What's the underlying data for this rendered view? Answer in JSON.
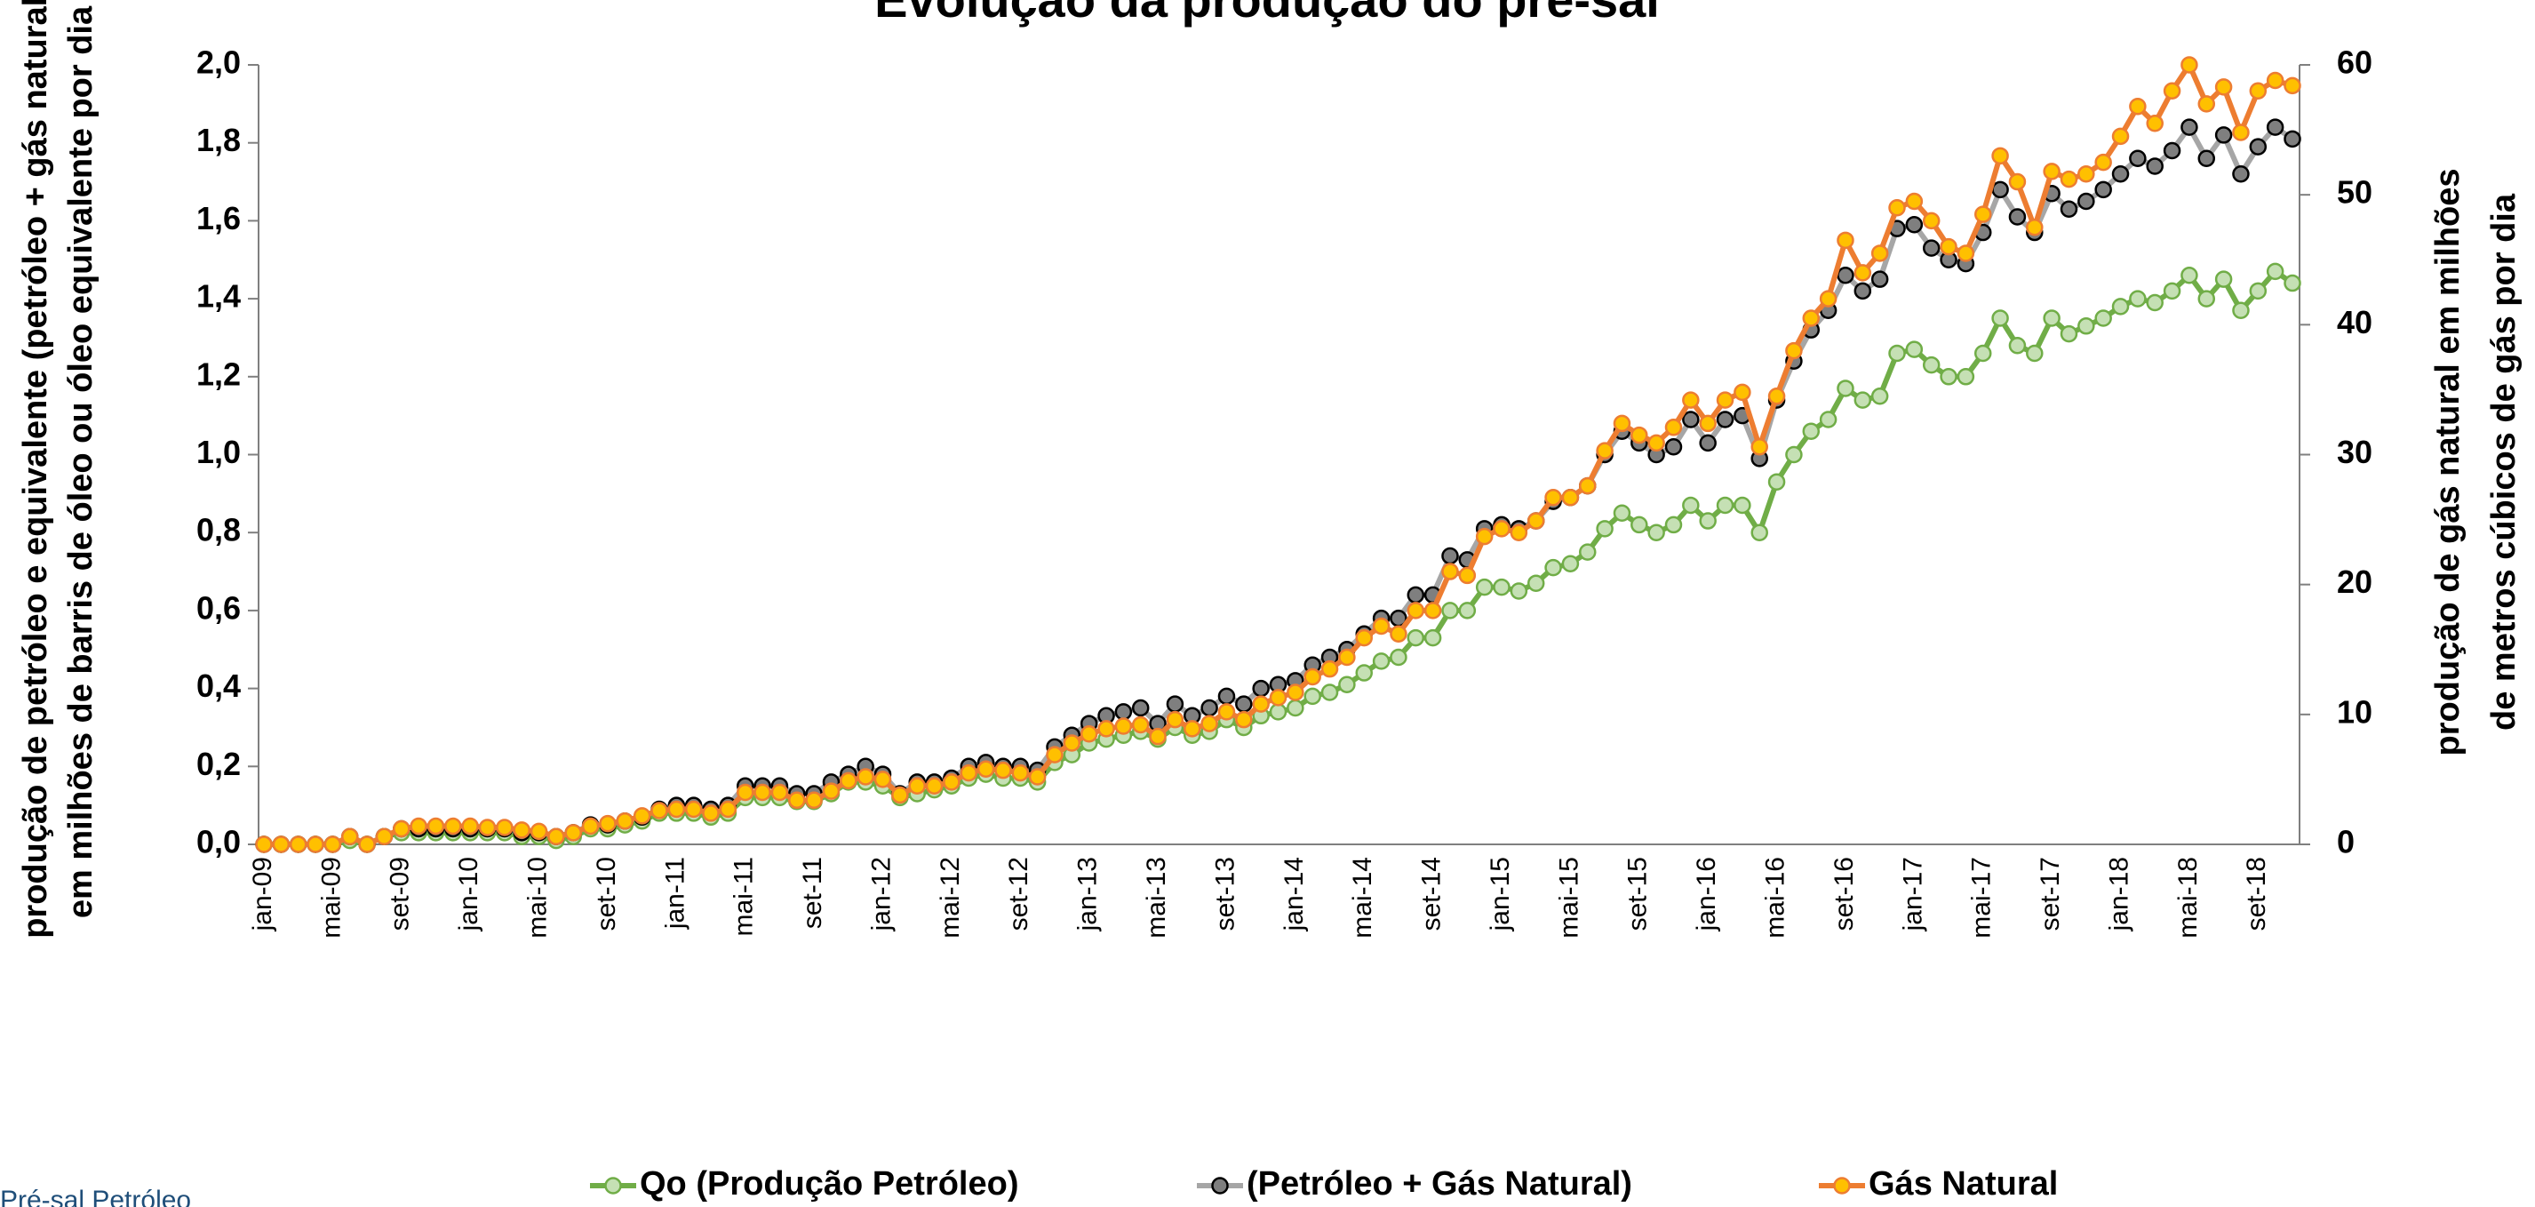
{
  "chart_data": {
    "type": "line",
    "title": "Evolução da produção do pré-sal",
    "logo": "Pré-sal Petróleo",
    "ylabel": [
      "produção de petróleo e equivalente (petróleo + gás natural)",
      "em milhões de barris de óleo ou óleo equivalente por dia"
    ],
    "y2label": [
      "produção de gás natural em milhões",
      "de metros cúbicos de gás por dia"
    ],
    "categories": [
      "jan-09",
      null,
      null,
      null,
      "mai-09",
      null,
      null,
      null,
      "set-09",
      null,
      null,
      null,
      "jan-10",
      null,
      null,
      null,
      "mai-10",
      null,
      null,
      null,
      "set-10",
      null,
      null,
      null,
      "jan-11",
      null,
      null,
      null,
      "mai-11",
      null,
      null,
      null,
      "set-11",
      null,
      null,
      null,
      "jan-12",
      null,
      null,
      null,
      "mai-12",
      null,
      null,
      null,
      "set-12",
      null,
      null,
      null,
      "jan-13",
      null,
      null,
      null,
      "mai-13",
      null,
      null,
      null,
      "set-13",
      null,
      null,
      null,
      "jan-14",
      null,
      null,
      null,
      "mai-14",
      null,
      null,
      null,
      "set-14",
      null,
      null,
      null,
      "jan-15",
      null,
      null,
      null,
      "mai-15",
      null,
      null,
      null,
      "set-15",
      null,
      null,
      null,
      "jan-16",
      null,
      null,
      null,
      "mai-16",
      null,
      null,
      null,
      "set-16",
      null,
      null,
      null,
      "jan-17",
      null,
      null,
      null,
      "mai-17",
      null,
      null,
      null,
      "set-17",
      null,
      null,
      null,
      "jan-18",
      null,
      null,
      null,
      "mai-18",
      null,
      null,
      null,
      "set-18",
      null,
      null
    ],
    "series": [
      {
        "name": "Qo (Produção Petróleo)",
        "color": "#70ad47",
        "marker_color": "#c5e0b4",
        "values": [
          0,
          0,
          0,
          0,
          0,
          0.01,
          0,
          0.02,
          0.03,
          0.03,
          0.03,
          0.03,
          0.03,
          0.03,
          0.03,
          0.02,
          0.02,
          0.01,
          0.02,
          0.04,
          0.04,
          0.05,
          0.06,
          0.08,
          0.08,
          0.08,
          0.07,
          0.08,
          0.12,
          0.12,
          0.12,
          0.11,
          0.11,
          0.13,
          0.16,
          0.16,
          0.15,
          0.12,
          0.13,
          0.14,
          0.15,
          0.17,
          0.18,
          0.17,
          0.17,
          0.16,
          0.21,
          0.23,
          0.26,
          0.27,
          0.28,
          0.29,
          0.27,
          0.3,
          0.28,
          0.29,
          0.32,
          0.3,
          0.33,
          0.34,
          0.35,
          0.38,
          0.39,
          0.41,
          0.44,
          0.47,
          0.48,
          0.53,
          0.53,
          0.6,
          0.6,
          0.66,
          0.66,
          0.65,
          0.67,
          0.71,
          0.72,
          0.75,
          0.81,
          0.85,
          0.82,
          0.8,
          0.82,
          0.87,
          0.83,
          0.87,
          0.87,
          0.8,
          0.93,
          1.0,
          1.06,
          1.09,
          1.17,
          1.14,
          1.15,
          1.26,
          1.27,
          1.23,
          1.2,
          1.2,
          1.26,
          1.35,
          1.28,
          1.26,
          1.35,
          1.31,
          1.33,
          1.35,
          1.38,
          1.4,
          1.39,
          1.42,
          1.46,
          1.4,
          1.45,
          1.37,
          1.42,
          1.47,
          1.44
        ]
      },
      {
        "name": "(Petróleo + Gás Natural)",
        "color": "#a6a6a6",
        "marker_color": "#7f7f7f",
        "values": [
          0,
          0,
          0,
          0,
          0,
          0.02,
          0,
          0.02,
          0.04,
          0.04,
          0.04,
          0.04,
          0.04,
          0.04,
          0.04,
          0.03,
          0.03,
          0.02,
          0.03,
          0.05,
          0.05,
          0.06,
          0.07,
          0.09,
          0.1,
          0.1,
          0.09,
          0.1,
          0.15,
          0.15,
          0.15,
          0.13,
          0.13,
          0.16,
          0.18,
          0.2,
          0.18,
          0.13,
          0.16,
          0.16,
          0.17,
          0.2,
          0.21,
          0.2,
          0.2,
          0.19,
          0.25,
          0.28,
          0.31,
          0.33,
          0.34,
          0.35,
          0.31,
          0.36,
          0.33,
          0.35,
          0.38,
          0.36,
          0.4,
          0.41,
          0.42,
          0.46,
          0.48,
          0.5,
          0.54,
          0.58,
          0.58,
          0.64,
          0.64,
          0.74,
          0.73,
          0.81,
          0.82,
          0.81,
          0.83,
          0.88,
          0.89,
          0.92,
          1.0,
          1.06,
          1.03,
          1.0,
          1.02,
          1.09,
          1.03,
          1.09,
          1.1,
          0.99,
          1.14,
          1.24,
          1.32,
          1.37,
          1.46,
          1.42,
          1.45,
          1.58,
          1.59,
          1.53,
          1.5,
          1.49,
          1.57,
          1.68,
          1.61,
          1.57,
          1.67,
          1.63,
          1.65,
          1.68,
          1.72,
          1.76,
          1.74,
          1.78,
          1.84,
          1.76,
          1.82,
          1.72,
          1.79,
          1.84,
          1.81
        ]
      },
      {
        "name": "Gás Natural",
        "color": "#ed7d31",
        "marker_color": "#ffc000",
        "axis": "y2",
        "values": [
          0,
          0,
          0,
          0,
          0,
          0.6,
          0,
          0.6,
          1.2,
          1.4,
          1.4,
          1.4,
          1.4,
          1.3,
          1.3,
          1.1,
          1.0,
          0.6,
          0.9,
          1.4,
          1.6,
          1.8,
          2.2,
          2.6,
          2.7,
          2.7,
          2.4,
          2.7,
          4.0,
          4.0,
          4.0,
          3.4,
          3.4,
          4.1,
          4.9,
          5.2,
          5.0,
          3.8,
          4.5,
          4.5,
          4.8,
          5.5,
          5.8,
          5.7,
          5.5,
          5.2,
          6.9,
          7.8,
          8.5,
          8.9,
          9.1,
          9.2,
          8.3,
          9.6,
          8.9,
          9.3,
          10.2,
          9.6,
          10.8,
          11.3,
          11.7,
          12.9,
          13.5,
          14.4,
          15.9,
          16.8,
          16.2,
          18.0,
          18.0,
          21.0,
          20.7,
          23.7,
          24.3,
          24.0,
          24.9,
          26.7,
          26.7,
          27.6,
          30.3,
          32.4,
          31.5,
          30.9,
          32.1,
          34.2,
          32.4,
          34.2,
          34.8,
          30.6,
          34.5,
          38.0,
          40.5,
          42.0,
          46.5,
          44.0,
          45.5,
          49.0,
          49.5,
          48.0,
          46.0,
          45.5,
          48.5,
          53.0,
          51.0,
          47.5,
          51.8,
          51.2,
          51.6,
          52.5,
          54.5,
          56.8,
          55.5,
          58.0,
          60.0,
          57.0,
          58.3,
          54.8,
          58.0,
          58.8,
          58.4
        ]
      }
    ],
    "ylim": [
      0,
      2
    ],
    "yticks": [
      {
        "value": 0,
        "label": "0,0"
      },
      {
        "value": 0.2,
        "label": "0,2"
      },
      {
        "value": 0.4,
        "label": "0,4"
      },
      {
        "value": 0.6,
        "label": "0,6"
      },
      {
        "value": 0.8,
        "label": "0,8"
      },
      {
        "value": 1,
        "label": "1,0"
      },
      {
        "value": 1.2,
        "label": "1,2"
      },
      {
        "value": 1.4,
        "label": "1,4"
      },
      {
        "value": 1.6,
        "label": "1,6"
      },
      {
        "value": 1.8,
        "label": "1,8"
      },
      {
        "value": 2,
        "label": "2,0"
      }
    ],
    "y2lim": [
      0,
      60
    ],
    "y2ticks": [
      0,
      10,
      20,
      30,
      40,
      50,
      60
    ],
    "legend": "bottom"
  }
}
